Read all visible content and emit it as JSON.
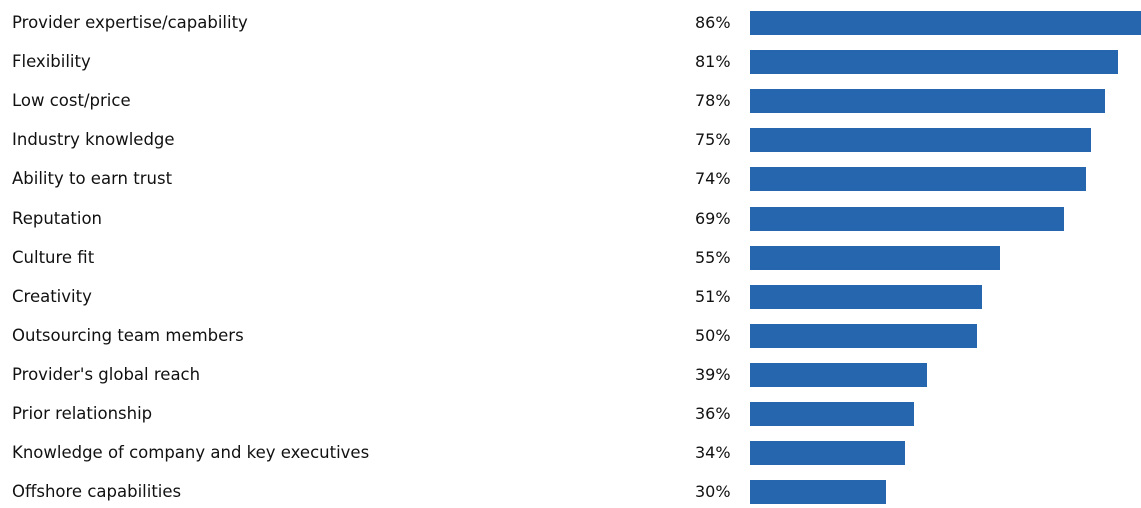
{
  "chart_data": {
    "type": "bar",
    "orientation": "horizontal",
    "categories": [
      "Provider expertise/capability",
      "Flexibility",
      "Low cost/price",
      "Industry knowledge",
      "Ability to earn trust",
      "Reputation",
      "Culture fit",
      "Creativity",
      "Outsourcing team members",
      "Provider's global reach",
      "Prior relationship",
      "Knowledge of company and key executives",
      "Offshore capabilities"
    ],
    "values": [
      86,
      81,
      78,
      75,
      74,
      69,
      55,
      51,
      50,
      39,
      36,
      34,
      30
    ],
    "value_labels": [
      "86%",
      "81%",
      "78%",
      "75%",
      "74%",
      "69%",
      "55%",
      "51%",
      "50%",
      "39%",
      "36%",
      "34%",
      "30%"
    ],
    "unit": "%",
    "xlim": [
      0,
      86
    ],
    "grid": false,
    "legend": "none",
    "bar_color": "#2666ae"
  }
}
